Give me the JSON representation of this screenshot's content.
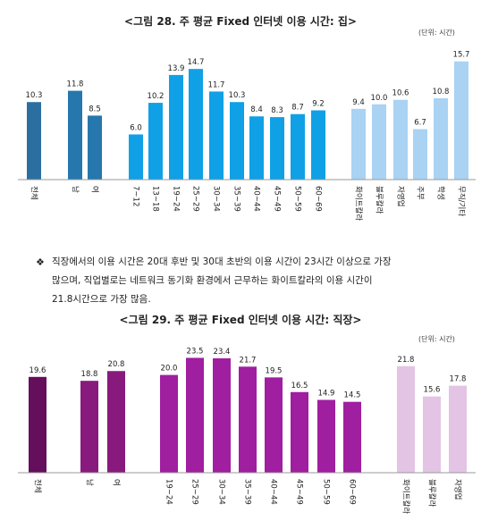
{
  "chart_data": [
    {
      "type": "bar",
      "title": "<그림 28. 주 평균 Fixed 인터넷 이용 시간: 집>",
      "unit": "(단위: 시간)",
      "categories": [
        "전체",
        "남",
        "여",
        "7~12",
        "13~18",
        "19~24",
        "25~29",
        "30~34",
        "35~39",
        "40~44",
        "45~49",
        "50~59",
        "60~69",
        "화이트칼라",
        "블루칼라",
        "자영업",
        "주부",
        "학생",
        "무직/기타"
      ],
      "values": [
        10.3,
        11.8,
        8.5,
        6.0,
        10.2,
        13.9,
        14.7,
        11.7,
        10.3,
        8.4,
        8.3,
        8.7,
        9.2,
        9.4,
        10.0,
        10.6,
        6.7,
        10.8,
        15.7
      ],
      "value_labels": [
        "10.3",
        "11.8",
        "8.5",
        "6.0",
        "10.2",
        "13.9",
        "14.7",
        "11.7",
        "10.3",
        "8.4",
        "8.3",
        "8.7",
        "9.2",
        "9.4",
        "10.0",
        "10.6",
        "6.7",
        "10.8",
        "15.7"
      ],
      "colors": [
        "#2b6fa0",
        "#2577ad",
        "#2577ad",
        "#10a0e6",
        "#10a0e6",
        "#10a0e6",
        "#10a0e6",
        "#10a0e6",
        "#10a0e6",
        "#10a0e6",
        "#10a0e6",
        "#10a0e6",
        "#10a0e6",
        "#a9d2f3",
        "#a9d2f3",
        "#a9d2f3",
        "#a9d2f3",
        "#a9d2f3",
        "#a9d2f3"
      ],
      "groups": [
        [
          0
        ],
        [
          1,
          2
        ],
        [
          3,
          4,
          5,
          6,
          7,
          8,
          9,
          10,
          11,
          12
        ],
        [
          13,
          14,
          15,
          16,
          17,
          18
        ]
      ],
      "ylim": [
        0,
        16.5
      ],
      "grid": false
    },
    {
      "type": "bar",
      "title": "<그림 29. 주 평균 Fixed 인터넷 이용 시간: 직장>",
      "unit": "(단위: 시간)",
      "categories": [
        "전체",
        "남",
        "여",
        "19~24",
        "25~29",
        "30~34",
        "35~39",
        "40~44",
        "45~49",
        "50~59",
        "60~69",
        "화이트칼라",
        "블루칼라",
        "자영업"
      ],
      "values": [
        19.6,
        18.8,
        20.8,
        20.0,
        23.5,
        23.4,
        21.7,
        19.5,
        16.5,
        14.9,
        14.5,
        21.8,
        15.6,
        17.8
      ],
      "value_labels": [
        "19.6",
        "18.8",
        "20.8",
        "20.0",
        "23.5",
        "23.4",
        "21.7",
        "19.5",
        "16.5",
        "14.9",
        "14.5",
        "21.8",
        "15.6",
        "17.8"
      ],
      "colors": [
        "#650e5c",
        "#881a7e",
        "#881a7e",
        "#a01ea0",
        "#a01ea0",
        "#a01ea0",
        "#a01ea0",
        "#a01ea0",
        "#a01ea0",
        "#a01ea0",
        "#a01ea0",
        "#e3c4e4",
        "#e3c4e4",
        "#e3c4e4"
      ],
      "groups": [
        [
          0
        ],
        [
          1,
          2
        ],
        [
          3,
          4,
          5,
          6,
          7,
          8,
          9,
          10
        ],
        [
          11,
          12,
          13
        ]
      ],
      "ylim": [
        0,
        24.5
      ],
      "grid": false
    }
  ],
  "paragraph": {
    "bullet": "❖",
    "lines": [
      "직장에서의 이용 시간은 20대 후반 및 30대 초반의 이용 시간이 23시간 이상으로 가장",
      "많으며, 직업별로는 네트워크 동기화 환경에서 근무하는 화이트칼라의 이용 시간이",
      "21.8시간으로 가장 많음."
    ]
  }
}
